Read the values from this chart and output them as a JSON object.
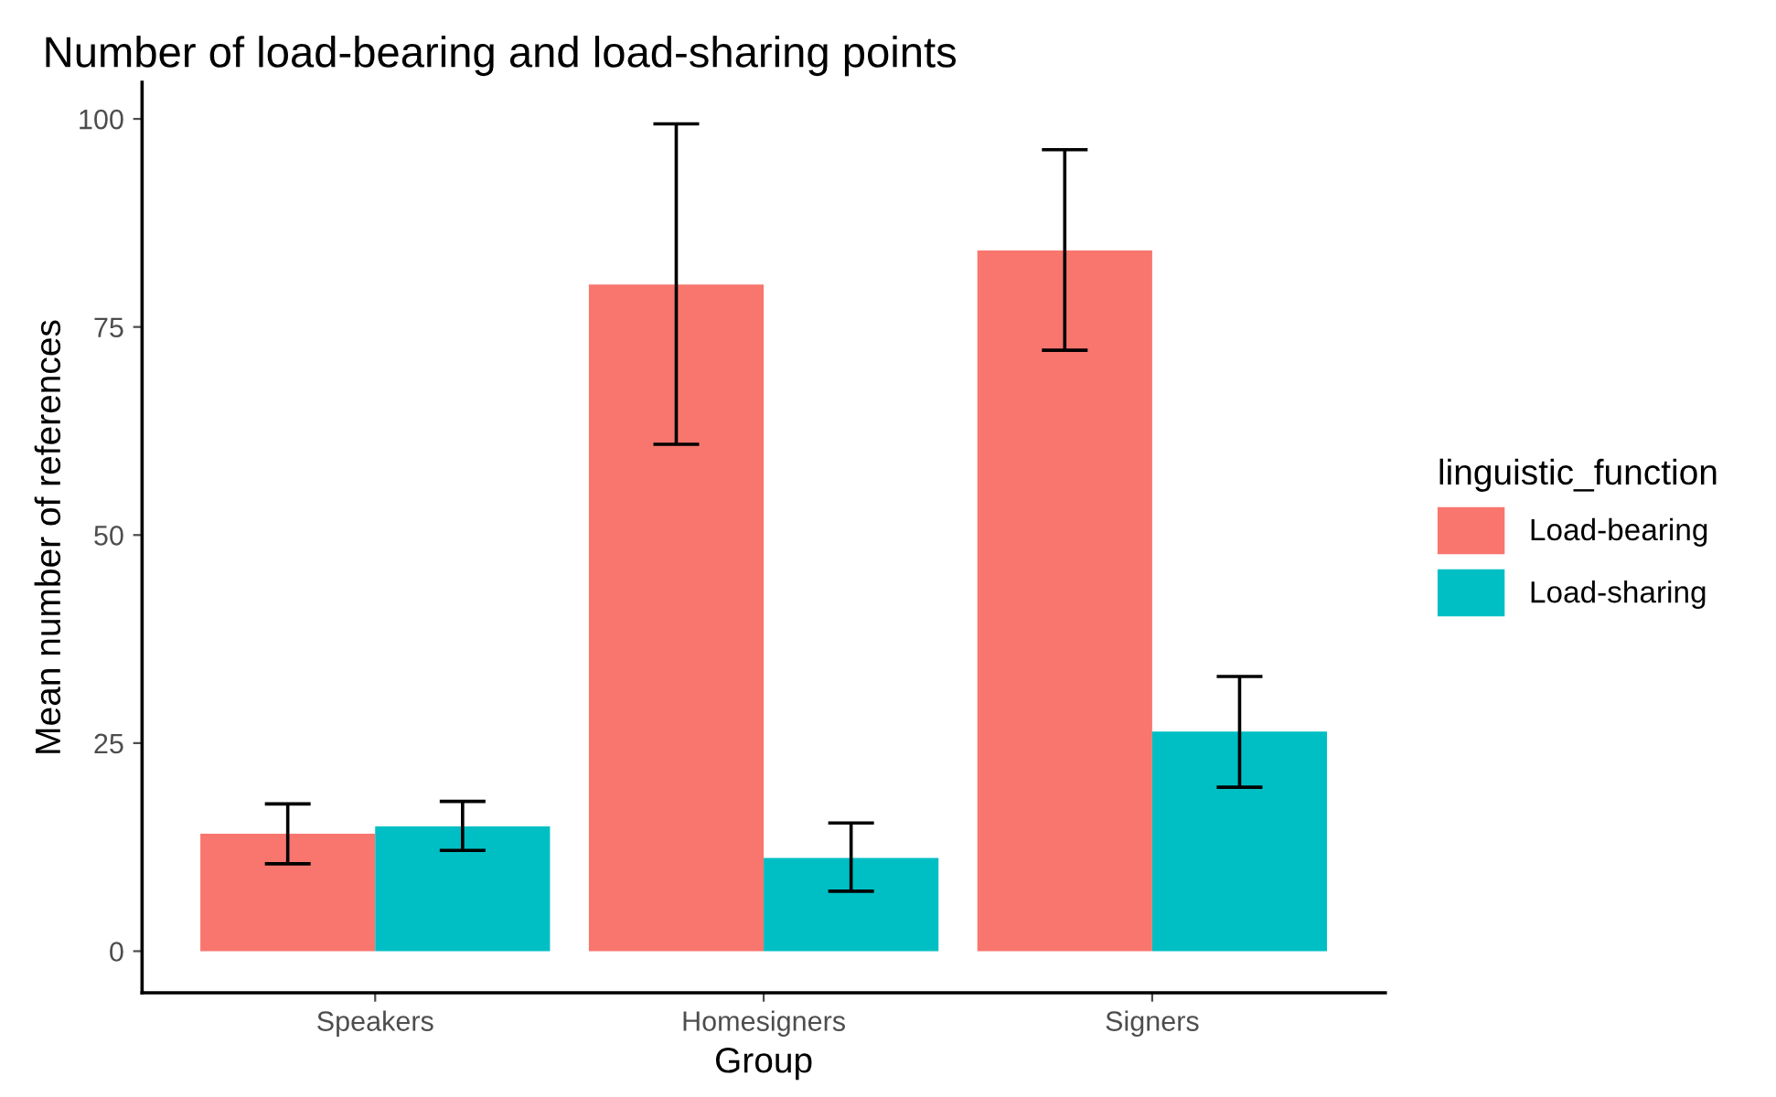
{
  "chart_data": {
    "type": "bar",
    "title": "Number of load-bearing and load-sharing points",
    "xlabel": "Group",
    "ylabel": "Mean number of references",
    "legend_title": "linguistic_function",
    "categories": [
      "Speakers",
      "Homesigners",
      "Signers"
    ],
    "series": [
      {
        "name": "Load-bearing",
        "color": "#f8766d",
        "values": [
          14.1,
          80.1,
          84.2
        ],
        "errors": [
          [
            10.5,
            17.7
          ],
          [
            60.9,
            99.4
          ],
          [
            72.2,
            96.3
          ]
        ]
      },
      {
        "name": "Load-sharing",
        "color": "#00bfc4",
        "values": [
          15.0,
          11.2,
          26.4
        ],
        "errors": [
          [
            12.1,
            18.0
          ],
          [
            7.2,
            15.4
          ],
          [
            19.7,
            33.0
          ]
        ]
      }
    ],
    "ylim": [
      -5,
      104.4
    ],
    "yticks": [
      0,
      25,
      50,
      75,
      100
    ],
    "grid": false,
    "legend": "right"
  }
}
